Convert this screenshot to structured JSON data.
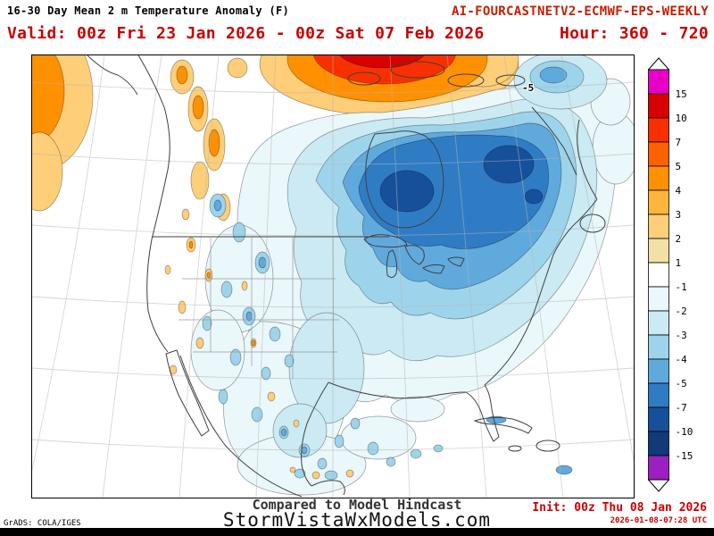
{
  "header": {
    "title": "16-30 Day Mean 2 m Temperature Anomaly (F)",
    "model": "AI-FOURCASTNETV2-ECMWF-EPS-WEEKLY",
    "valid_label": "Valid: 00z Fri 23 Jan 2026 - 00z Sat 07 Feb 2026",
    "hour_label": "Hour: 360 - 720"
  },
  "map": {
    "contour_label": "-5"
  },
  "colorbar": {
    "labels": [
      "15",
      "10",
      "7",
      "5",
      "4",
      "3",
      "2",
      "1",
      "-1",
      "-2",
      "-3",
      "-4",
      "-5",
      "-7",
      "-10",
      "-15"
    ],
    "band_colors": [
      "#E800C8",
      "#D80000",
      "#F83000",
      "#FF6000",
      "#FF9000",
      "#FFB43C",
      "#FFCE78",
      "#F2E0A6",
      "#FFFFFF",
      "#EAF7FB",
      "#CBEAF3",
      "#9DD4EB",
      "#60A9DD",
      "#2F7CC5",
      "#17509A",
      "#123A78",
      "#9B1FC1"
    ]
  },
  "footer": {
    "comparison": "Compared to Model Hindcast",
    "site": "StormVistaWxModels.com",
    "credit": "GrADS: COLA/IGES",
    "init_label": "Init: 00z Thu 08 Jan 2026",
    "generated": "2026-01-08-07:28 UTC"
  },
  "colors": {
    "title_text": "#000000",
    "model_text": "#C41E00",
    "valid_text": "#C80000",
    "init_text": "#CC0000"
  }
}
